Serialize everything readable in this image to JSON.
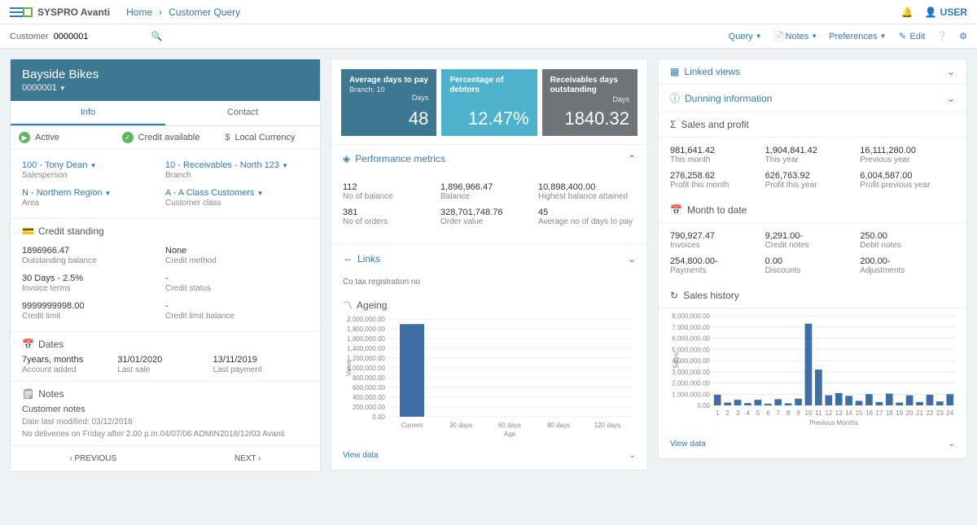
{
  "app": {
    "brand": "SYSPRO Avanti",
    "home": "Home",
    "page": "Customer Query",
    "user": "USER"
  },
  "toolbar": {
    "label": "Customer",
    "value": "0000001",
    "query": "Query",
    "notes": "Notes",
    "prefs": "Preferences",
    "edit": "Edit"
  },
  "customer": {
    "name": "Bayside Bikes",
    "id": "0000001"
  },
  "tabs": {
    "info": "Info",
    "contact": "Contact"
  },
  "status": {
    "active": "Active",
    "credit": "Credit available",
    "currency": "Local Currency"
  },
  "fields": {
    "salesperson": {
      "v": "100 - Tony Dean",
      "l": "Salesperson"
    },
    "branch": {
      "v": "10 - Receivables - North 123",
      "l": "Branch"
    },
    "area": {
      "v": "N - Northern Region",
      "l": "Area"
    },
    "class": {
      "v": "A - A Class Customers",
      "l": "Customer class"
    }
  },
  "credit": {
    "h": "Credit standing",
    "bal": {
      "v": "1896966.47",
      "l": "Outstanding balance"
    },
    "method": {
      "v": "None",
      "l": "Credit method"
    },
    "terms": {
      "v": "30 Days - 2.5%",
      "l": "Invoice terms"
    },
    "status": {
      "v": "-",
      "l": "Credit status"
    },
    "limit": {
      "v": "9999999998.00",
      "l": "Credit limit"
    },
    "limbal": {
      "v": "-",
      "l": "Credit limit balance"
    }
  },
  "dates": {
    "h": "Dates",
    "added": {
      "v": "7years,  months",
      "l": "Account added"
    },
    "last_sale": {
      "v": "31/01/2020",
      "l": "Last sale"
    },
    "last_pay": {
      "v": "13/11/2019",
      "l": "Last payment"
    }
  },
  "notes": {
    "h": "Notes",
    "sub": "Customer notes",
    "mod": "Date last modified: 03/12/2018",
    "body": "No deliveries on Friday after 2.00 p.m.04/07/06 ADMIN2018/12/03 Avanti"
  },
  "pager": {
    "prev": "PREVIOUS",
    "next": "NEXT"
  },
  "kpi": [
    {
      "t": "Average days to pay",
      "sub": "Branch: 10",
      "u": "Days",
      "val": "48",
      "bg": "#3d7893"
    },
    {
      "t": "Percentage of debtors",
      "sub": "",
      "u": "",
      "val": "12.47%",
      "bg": "#4fb2cc"
    },
    {
      "t": "Receivables days outstanding",
      "sub": "",
      "u": "Days",
      "val": "1840.32",
      "bg": "#6e7478"
    }
  ],
  "perf": {
    "h": "Performance metrics",
    "m": [
      {
        "v": "112",
        "l": "No of balance"
      },
      {
        "v": "1,896,966.47",
        "l": "Balance"
      },
      {
        "v": "10,898,400.00",
        "l": "Highest balance attained"
      },
      {
        "v": "381",
        "l": "No of orders"
      },
      {
        "v": "328,701,748.76",
        "l": "Order value"
      },
      {
        "v": "45",
        "l": "Average no of days to pay"
      }
    ]
  },
  "links": {
    "h": "Links",
    "tax": "Co tax registration no"
  },
  "ageing": {
    "h": "Ageing",
    "ylabel": "Value",
    "xlabel": "Age",
    "ymax": 2000000,
    "ystep": 200000,
    "cats": [
      "Current",
      "30 days",
      "60 days",
      "80 days",
      "120 days"
    ],
    "vals": [
      1896966,
      0,
      0,
      0,
      0
    ],
    "bar_color": "#3d6fa5",
    "grid": "#e8e8e8",
    "viewdata": "View data"
  },
  "right": {
    "linked": "Linked views",
    "dunning": "Dunning information",
    "sales_h": "Sales and profit",
    "sales": [
      {
        "v": "981,641.42",
        "l": "This month"
      },
      {
        "v": "1,904,841.42",
        "l": "This year"
      },
      {
        "v": "16,111,280.00",
        "l": "Previous year"
      },
      {
        "v": "276,258.62",
        "l": "Profit this month"
      },
      {
        "v": "626,763.92",
        "l": "Profit this year"
      },
      {
        "v": "6,004,587.00",
        "l": "Profit previous year"
      }
    ],
    "mtd_h": "Month to date",
    "mtd": [
      {
        "v": "790,927.47",
        "l": "Invoices"
      },
      {
        "v": "9,291.00-",
        "l": "Credit notes"
      },
      {
        "v": "250.00",
        "l": "Debit notes"
      },
      {
        "v": "254,800.00-",
        "l": "Payments"
      },
      {
        "v": "0.00",
        "l": "Discounts"
      },
      {
        "v": "200.00-",
        "l": "Adjustments"
      }
    ],
    "hist_h": "Sales history",
    "hist": {
      "ylabel": "Sales",
      "xlabel": "Previous Months",
      "ymax": 8000000,
      "ystep": 1000000,
      "vals": [
        950000,
        250000,
        500000,
        200000,
        500000,
        150000,
        550000,
        180000,
        600000,
        7300000,
        3200000,
        900000,
        1100000,
        850000,
        400000,
        1000000,
        300000,
        1050000,
        250000,
        900000,
        300000,
        950000,
        350000,
        1000000
      ],
      "bar_color": "#3d6fa5",
      "viewdata": "View data"
    }
  }
}
